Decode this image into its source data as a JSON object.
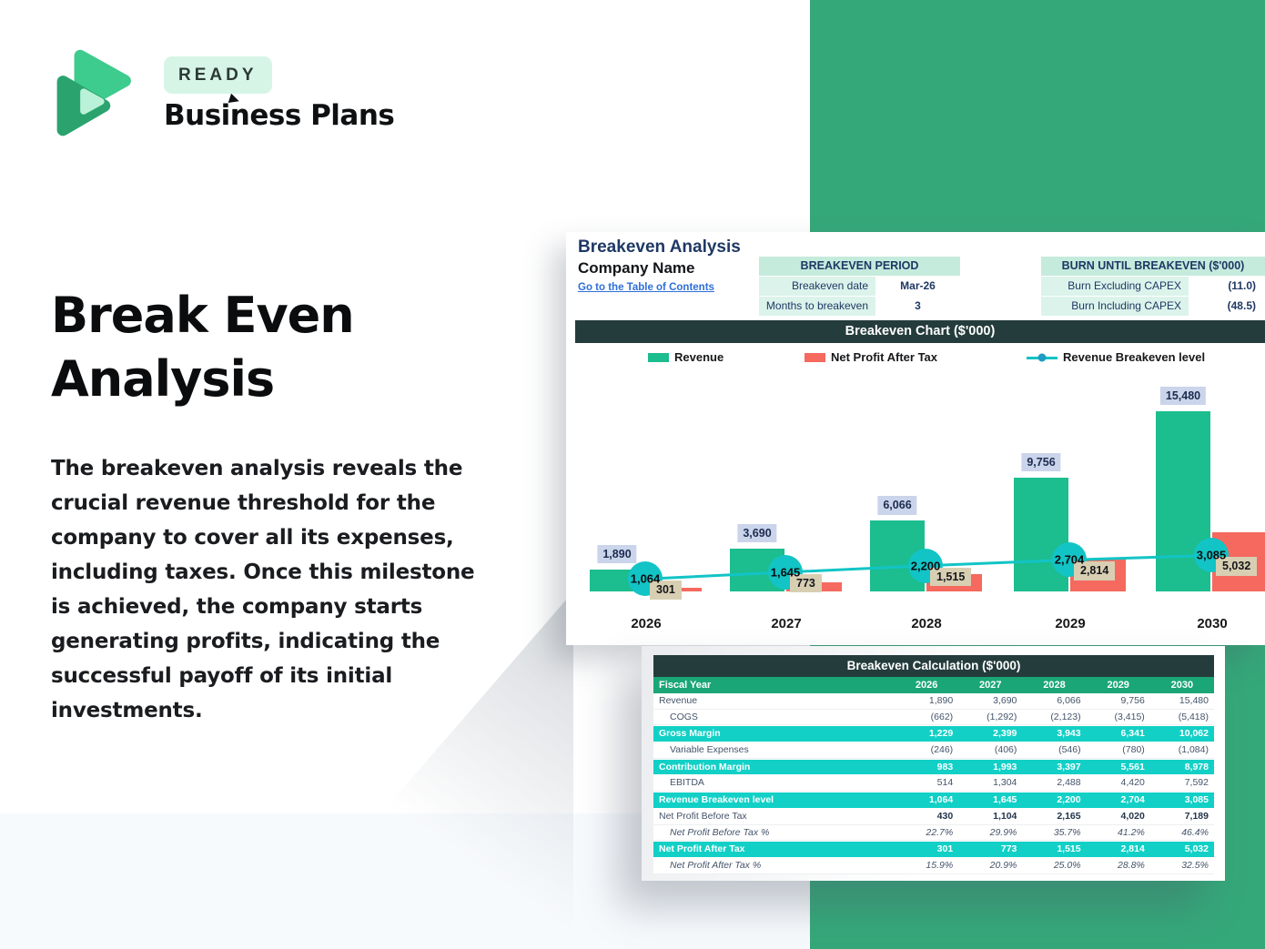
{
  "brand": {
    "badge": "READY",
    "name": "Business Plans"
  },
  "hero": {
    "title": "Break Even Analysis",
    "description": "The breakeven analysis reveals the crucial revenue threshold for the company to cover all its expenses, including taxes. Once this milestone is achieved, the company starts generating profits, indicating the successful payoff of its initial investments."
  },
  "sheet": {
    "title": "Breakeven Analysis",
    "company": "Company Name",
    "link": "Go to the Table of Contents",
    "period_table": {
      "header": "BREAKEVEN PERIOD",
      "rows": [
        {
          "label": "Breakeven date",
          "value": "Mar-26"
        },
        {
          "label": "Months to breakeven",
          "value": "3"
        }
      ]
    },
    "burn_table": {
      "header": "BURN UNTIL BREAKEVEN ($'000)",
      "rows": [
        {
          "label": "Burn Excluding CAPEX",
          "value": "(11.0)"
        },
        {
          "label": "Burn Including CAPEX",
          "value": "(48.5)"
        }
      ]
    }
  },
  "chart_data": {
    "type": "bar",
    "title": "Breakeven Chart ($'000)",
    "categories": [
      "2026",
      "2027",
      "2028",
      "2029",
      "2030"
    ],
    "series": [
      {
        "name": "Revenue",
        "kind": "bar",
        "color": "#1cbd8e",
        "values": [
          1890,
          3690,
          6066,
          9756,
          15480
        ],
        "labels": [
          "1,890",
          "3,690",
          "6,066",
          "9,756",
          "15,480"
        ]
      },
      {
        "name": "Net Profit After Tax",
        "kind": "bar",
        "color": "#f5695f",
        "values": [
          301,
          773,
          1515,
          2814,
          5032
        ],
        "labels": [
          "301",
          "773",
          "1,515",
          "2,814",
          "5,032"
        ]
      },
      {
        "name": "Revenue Breakeven level",
        "kind": "line",
        "color": "#12c4c6",
        "dot_color": "#1f9cc4",
        "values": [
          1064,
          1645,
          2200,
          2704,
          3085
        ],
        "labels": [
          "1,064",
          "1,645",
          "2,200",
          "2,704",
          "3,085"
        ]
      }
    ],
    "ylim": [
      0,
      16500
    ],
    "grid": false,
    "legend_position": "top"
  },
  "calc_table": {
    "title": "Breakeven Calculation ($'000)",
    "header": [
      "Fiscal Year",
      "2026",
      "2027",
      "2028",
      "2029",
      "2030"
    ],
    "rows": [
      {
        "label": "Revenue",
        "style": "normal",
        "values": [
          "1,890",
          "3,690",
          "6,066",
          "9,756",
          "15,480"
        ]
      },
      {
        "label": "COGS",
        "style": "indent",
        "values": [
          "(662)",
          "(1,292)",
          "(2,123)",
          "(3,415)",
          "(5,418)"
        ]
      },
      {
        "label": "Gross Margin",
        "style": "highlight",
        "values": [
          "1,229",
          "2,399",
          "3,943",
          "6,341",
          "10,062"
        ]
      },
      {
        "label": "Variable Expenses",
        "style": "indent",
        "values": [
          "(246)",
          "(406)",
          "(546)",
          "(780)",
          "(1,084)"
        ]
      },
      {
        "label": "Contribution Margin",
        "style": "highlight",
        "values": [
          "983",
          "1,993",
          "3,397",
          "5,561",
          "8,978"
        ]
      },
      {
        "label": "EBITDA",
        "style": "indent",
        "values": [
          "514",
          "1,304",
          "2,488",
          "4,420",
          "7,592"
        ]
      },
      {
        "label": "Revenue Breakeven level",
        "style": "highlight",
        "values": [
          "1,064",
          "1,645",
          "2,200",
          "2,704",
          "3,085"
        ]
      },
      {
        "label": "Net Profit Before Tax",
        "style": "bold",
        "values": [
          "430",
          "1,104",
          "2,165",
          "4,020",
          "7,189"
        ]
      },
      {
        "label": "Net Profit Before Tax %",
        "style": "pct",
        "values": [
          "22.7%",
          "29.9%",
          "35.7%",
          "41.2%",
          "46.4%"
        ]
      },
      {
        "label": "Net Profit After Tax",
        "style": "highlight",
        "values": [
          "301",
          "773",
          "1,515",
          "2,814",
          "5,032"
        ]
      },
      {
        "label": "Net Profit After Tax %",
        "style": "pct",
        "values": [
          "15.9%",
          "20.9%",
          "25.0%",
          "28.8%",
          "32.5%"
        ]
      }
    ]
  },
  "colors": {
    "brand_green": "#35a87a",
    "panel_dark": "#253c3c",
    "highlight_teal": "#12d0c6",
    "table_header_green": "#1aa676",
    "mint_header": "#c5ebdd",
    "mint_cell": "#dbf3eb",
    "navy_text": "#1f3864",
    "revenue_label_bg": "#cad4eb",
    "npat_label_bg": "#d8cfb3",
    "link_blue": "#2e6fd8"
  }
}
